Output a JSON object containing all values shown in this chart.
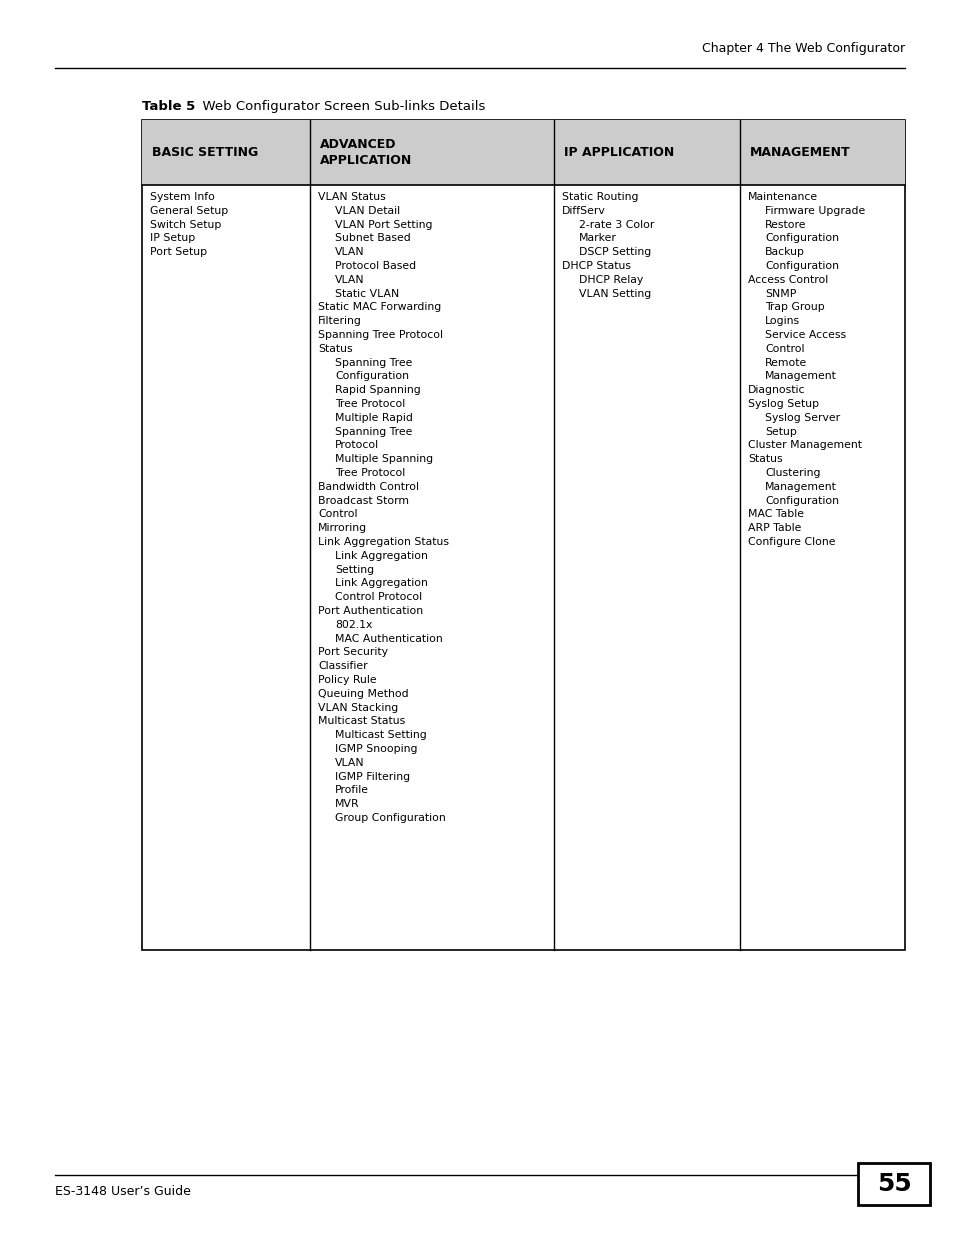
{
  "page_header": "Chapter 4 The Web Configurator",
  "table_title_bold": "Table 5",
  "table_title_normal": "  Web Configurator Screen Sub-links Details",
  "footer_left": "ES-3148 User’s Guide",
  "footer_page": "55",
  "header_bg": "#cccccc",
  "columns": [
    "BASIC SETTING",
    "ADVANCED\nAPPLICATION",
    "IP APPLICATION",
    "MANAGEMENT"
  ],
  "basic_setting": [
    {
      "text": "System Info",
      "indent": 0
    },
    {
      "text": "General Setup",
      "indent": 0
    },
    {
      "text": "Switch Setup",
      "indent": 0
    },
    {
      "text": "IP Setup",
      "indent": 0
    },
    {
      "text": "Port Setup",
      "indent": 0
    }
  ],
  "advanced_application": [
    {
      "text": "VLAN Status",
      "indent": 0
    },
    {
      "text": "VLAN Detail",
      "indent": 1
    },
    {
      "text": "VLAN Port Setting",
      "indent": 1
    },
    {
      "text": "Subnet Based",
      "indent": 1
    },
    {
      "text": "VLAN",
      "indent": 1
    },
    {
      "text": "Protocol Based",
      "indent": 1
    },
    {
      "text": "VLAN",
      "indent": 1
    },
    {
      "text": "Static VLAN",
      "indent": 1
    },
    {
      "text": "Static MAC Forwarding",
      "indent": 0
    },
    {
      "text": "Filtering",
      "indent": 0
    },
    {
      "text": "Spanning Tree Protocol",
      "indent": 0
    },
    {
      "text": "Status",
      "indent": 0
    },
    {
      "text": "Spanning Tree",
      "indent": 1
    },
    {
      "text": "Configuration",
      "indent": 1
    },
    {
      "text": "Rapid Spanning",
      "indent": 1
    },
    {
      "text": "Tree Protocol",
      "indent": 1
    },
    {
      "text": "Multiple Rapid",
      "indent": 1
    },
    {
      "text": "Spanning Tree",
      "indent": 1
    },
    {
      "text": "Protocol",
      "indent": 1
    },
    {
      "text": "Multiple Spanning",
      "indent": 1
    },
    {
      "text": "Tree Protocol",
      "indent": 1
    },
    {
      "text": "Bandwidth Control",
      "indent": 0
    },
    {
      "text": "Broadcast Storm",
      "indent": 0
    },
    {
      "text": "Control",
      "indent": 0
    },
    {
      "text": "Mirroring",
      "indent": 0
    },
    {
      "text": "Link Aggregation Status",
      "indent": 0
    },
    {
      "text": "Link Aggregation",
      "indent": 1
    },
    {
      "text": "Setting",
      "indent": 1
    },
    {
      "text": "Link Aggregation",
      "indent": 1
    },
    {
      "text": "Control Protocol",
      "indent": 1
    },
    {
      "text": "Port Authentication",
      "indent": 0
    },
    {
      "text": "802.1x",
      "indent": 1
    },
    {
      "text": "MAC Authentication",
      "indent": 1
    },
    {
      "text": "Port Security",
      "indent": 0
    },
    {
      "text": "Classifier",
      "indent": 0
    },
    {
      "text": "Policy Rule",
      "indent": 0
    },
    {
      "text": "Queuing Method",
      "indent": 0
    },
    {
      "text": "VLAN Stacking",
      "indent": 0
    },
    {
      "text": "Multicast Status",
      "indent": 0
    },
    {
      "text": "Multicast Setting",
      "indent": 1
    },
    {
      "text": "IGMP Snooping",
      "indent": 1
    },
    {
      "text": "VLAN",
      "indent": 1
    },
    {
      "text": "IGMP Filtering",
      "indent": 1
    },
    {
      "text": "Profile",
      "indent": 1
    },
    {
      "text": "MVR",
      "indent": 1
    },
    {
      "text": "Group Configuration",
      "indent": 1
    }
  ],
  "ip_application": [
    {
      "text": "Static Routing",
      "indent": 0
    },
    {
      "text": "DiffServ",
      "indent": 0
    },
    {
      "text": "2-rate 3 Color",
      "indent": 1
    },
    {
      "text": "Marker",
      "indent": 1
    },
    {
      "text": "DSCP Setting",
      "indent": 1
    },
    {
      "text": "DHCP Status",
      "indent": 0
    },
    {
      "text": "DHCP Relay",
      "indent": 1
    },
    {
      "text": "VLAN Setting",
      "indent": 1
    }
  ],
  "management": [
    {
      "text": "Maintenance",
      "indent": 0
    },
    {
      "text": "Firmware Upgrade",
      "indent": 1
    },
    {
      "text": "Restore",
      "indent": 1
    },
    {
      "text": "Configuration",
      "indent": 1
    },
    {
      "text": "Backup",
      "indent": 1
    },
    {
      "text": "Configuration",
      "indent": 1
    },
    {
      "text": "Access Control",
      "indent": 0
    },
    {
      "text": "SNMP",
      "indent": 1
    },
    {
      "text": "Trap Group",
      "indent": 1
    },
    {
      "text": "Logins",
      "indent": 1
    },
    {
      "text": "Service Access",
      "indent": 1
    },
    {
      "text": "Control",
      "indent": 1
    },
    {
      "text": "Remote",
      "indent": 1
    },
    {
      "text": "Management",
      "indent": 1
    },
    {
      "text": "Diagnostic",
      "indent": 0
    },
    {
      "text": "Syslog Setup",
      "indent": 0
    },
    {
      "text": "Syslog Server",
      "indent": 1
    },
    {
      "text": "Setup",
      "indent": 1
    },
    {
      "text": "Cluster Management",
      "indent": 0
    },
    {
      "text": "Status",
      "indent": 0
    },
    {
      "text": "Clustering",
      "indent": 1
    },
    {
      "text": "Management",
      "indent": 1
    },
    {
      "text": "Configuration",
      "indent": 1
    },
    {
      "text": "MAC Table",
      "indent": 0
    },
    {
      "text": "ARP Table",
      "indent": 0
    },
    {
      "text": "Configure Clone",
      "indent": 0
    }
  ]
}
